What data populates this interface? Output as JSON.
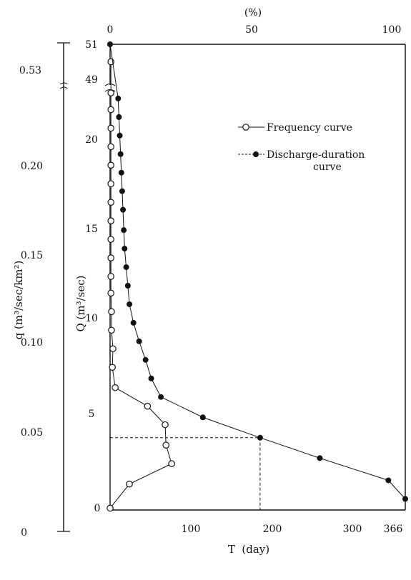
{
  "chart_data": {
    "type": "line",
    "top_axis": {
      "label": "(%)",
      "ticks": [
        "0",
        "50",
        "100"
      ],
      "range": [
        0,
        100
      ]
    },
    "bottom_axis": {
      "label": "T  (day)",
      "ticks": [
        "100",
        "200",
        "300",
        "366"
      ],
      "range": [
        0,
        366
      ]
    },
    "left_axis_q": {
      "label": "q (m³/sec/km²)",
      "ticks": [
        "0",
        "0.05",
        "0.10",
        "0.15",
        "0.20",
        "0.53"
      ]
    },
    "left_axis_Q": {
      "label": "Q (m³/sec)",
      "ticks": [
        "0",
        "5",
        "10",
        "15",
        "20",
        "49",
        "51"
      ],
      "range": [
        0,
        23.5
      ],
      "break_after": 22.5,
      "upper_segment": [
        49,
        51
      ]
    },
    "legend": [
      "Frequency curve",
      "Discharge-duration curve"
    ],
    "series": [
      {
        "name": "Frequency curve",
        "marker": "open-circle",
        "line": "solid",
        "unit": "%",
        "points": [
          {
            "x": 0,
            "y": 0.1
          },
          {
            "x": 6.8,
            "y": 1.4
          },
          {
            "x": 21.7,
            "y": 2.5
          },
          {
            "x": 19.7,
            "y": 3.5
          },
          {
            "x": 19.4,
            "y": 4.6
          },
          {
            "x": 13.2,
            "y": 5.6
          },
          {
            "x": 1.8,
            "y": 6.6
          },
          {
            "x": 0.8,
            "y": 7.7
          },
          {
            "x": 1.0,
            "y": 8.7
          },
          {
            "x": 0.5,
            "y": 9.7
          },
          {
            "x": 0.5,
            "y": 10.7
          },
          {
            "x": 0.3,
            "y": 11.7
          },
          {
            "x": 0.3,
            "y": 12.6
          },
          {
            "x": 0.3,
            "y": 13.6
          },
          {
            "x": 0.3,
            "y": 14.6
          },
          {
            "x": 0.3,
            "y": 15.6
          },
          {
            "x": 0.3,
            "y": 16.6
          },
          {
            "x": 0.3,
            "y": 17.6
          },
          {
            "x": 0.3,
            "y": 18.6
          },
          {
            "x": 0.3,
            "y": 19.6
          },
          {
            "x": 0.3,
            "y": 20.6
          },
          {
            "x": 0.3,
            "y": 21.6
          },
          {
            "x": 0.3,
            "y": 22.5
          },
          {
            "x": 0.3,
            "y": 50.0
          }
        ]
      },
      {
        "name": "Discharge-duration curve",
        "marker": "filled-circle",
        "line": "solid",
        "unit": "day",
        "points": [
          {
            "x": 366,
            "y": 0.6
          },
          {
            "x": 345,
            "y": 1.6
          },
          {
            "x": 260,
            "y": 2.8
          },
          {
            "x": 186,
            "y": 3.9
          },
          {
            "x": 115,
            "y": 5.0
          },
          {
            "x": 63,
            "y": 6.1
          },
          {
            "x": 51,
            "y": 7.1
          },
          {
            "x": 44,
            "y": 8.1
          },
          {
            "x": 36,
            "y": 9.1
          },
          {
            "x": 29,
            "y": 10.1
          },
          {
            "x": 24,
            "y": 11.1
          },
          {
            "x": 22,
            "y": 12.1
          },
          {
            "x": 20,
            "y": 13.1
          },
          {
            "x": 18,
            "y": 14.1
          },
          {
            "x": 17,
            "y": 15.1
          },
          {
            "x": 16,
            "y": 16.2
          },
          {
            "x": 15,
            "y": 17.2
          },
          {
            "x": 14,
            "y": 18.2
          },
          {
            "x": 13,
            "y": 19.2
          },
          {
            "x": 12,
            "y": 20.2
          },
          {
            "x": 11,
            "y": 21.2
          },
          {
            "x": 10,
            "y": 22.2
          },
          {
            "x": 0,
            "y": 51
          }
        ]
      }
    ],
    "reference_lines": [
      {
        "style": "dashed",
        "from": {
          "x": 0,
          "y": 3.9
        },
        "to": {
          "x": 186,
          "y": 3.9
        }
      },
      {
        "style": "dashed",
        "from": {
          "x": 186,
          "y": 3.9
        },
        "to": {
          "x": 186,
          "y": 0
        }
      }
    ],
    "grid": false
  }
}
